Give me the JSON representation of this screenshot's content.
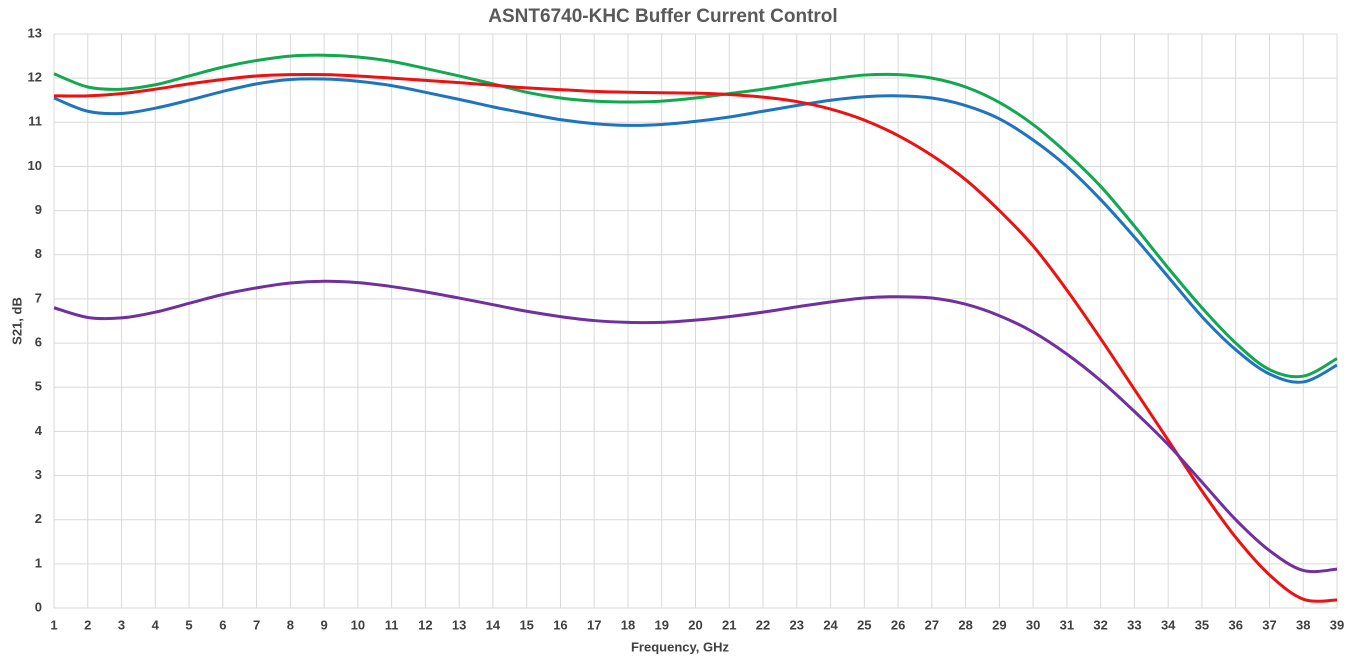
{
  "chart_data": {
    "type": "line",
    "title": "ASNT6740-KHC Buffer Current Control",
    "x_label": "Frequency, GHz",
    "y_label": "S21, dB",
    "x": [
      1,
      2,
      3,
      4,
      5,
      6,
      7,
      8,
      9,
      10,
      11,
      12,
      13,
      14,
      15,
      16,
      17,
      18,
      19,
      20,
      21,
      22,
      23,
      24,
      25,
      26,
      27,
      28,
      29,
      30,
      31,
      32,
      33,
      34,
      35,
      36,
      37,
      38,
      39
    ],
    "series": [
      {
        "color": "#12a84f",
        "values": [
          12.1,
          11.8,
          11.75,
          11.85,
          12.05,
          12.25,
          12.4,
          12.5,
          12.52,
          12.48,
          12.38,
          12.22,
          12.05,
          11.87,
          11.68,
          11.55,
          11.48,
          11.46,
          11.48,
          11.55,
          11.65,
          11.75,
          11.87,
          11.98,
          12.07,
          12.08,
          12.0,
          11.8,
          11.45,
          10.95,
          10.3,
          9.55,
          8.65,
          7.7,
          6.8,
          6.0,
          5.4,
          5.25,
          5.65
        ]
      },
      {
        "color": "#1f74c0",
        "values": [
          11.55,
          11.25,
          11.2,
          11.32,
          11.5,
          11.7,
          11.87,
          11.97,
          11.98,
          11.93,
          11.83,
          11.68,
          11.52,
          11.35,
          11.2,
          11.06,
          10.97,
          10.93,
          10.95,
          11.02,
          11.12,
          11.25,
          11.38,
          11.5,
          11.58,
          11.6,
          11.55,
          11.38,
          11.08,
          10.6,
          10.0,
          9.25,
          8.4,
          7.5,
          6.6,
          5.85,
          5.3,
          5.12,
          5.5
        ]
      },
      {
        "color": "#ee1111",
        "values": [
          11.6,
          11.6,
          11.65,
          11.75,
          11.87,
          11.97,
          12.05,
          12.08,
          12.08,
          12.05,
          12.0,
          11.95,
          11.9,
          11.84,
          11.78,
          11.74,
          11.7,
          11.68,
          11.67,
          11.66,
          11.63,
          11.57,
          11.47,
          11.3,
          11.05,
          10.7,
          10.25,
          9.7,
          9.0,
          8.2,
          7.2,
          6.1,
          4.95,
          3.8,
          2.65,
          1.6,
          0.75,
          0.2,
          0.18
        ]
      },
      {
        "color": "#7030a0",
        "values": [
          6.8,
          6.58,
          6.57,
          6.7,
          6.9,
          7.1,
          7.25,
          7.36,
          7.4,
          7.37,
          7.28,
          7.16,
          7.02,
          6.87,
          6.72,
          6.6,
          6.51,
          6.47,
          6.47,
          6.52,
          6.6,
          6.7,
          6.82,
          6.93,
          7.02,
          7.05,
          7.02,
          6.88,
          6.62,
          6.25,
          5.75,
          5.15,
          4.45,
          3.7,
          2.85,
          2.0,
          1.3,
          0.85,
          0.88
        ]
      }
    ],
    "xlim": [
      1,
      39
    ],
    "xticks": [
      1,
      2,
      3,
      4,
      5,
      6,
      7,
      8,
      9,
      10,
      11,
      12,
      13,
      14,
      15,
      16,
      17,
      18,
      19,
      20,
      21,
      22,
      23,
      24,
      25,
      26,
      27,
      28,
      29,
      30,
      31,
      32,
      33,
      34,
      35,
      36,
      37,
      38,
      39
    ],
    "ylim": [
      0,
      13
    ],
    "yticks": [
      0,
      1,
      2,
      3,
      4,
      5,
      6,
      7,
      8,
      9,
      10,
      11,
      12,
      13
    ],
    "grid": true
  }
}
